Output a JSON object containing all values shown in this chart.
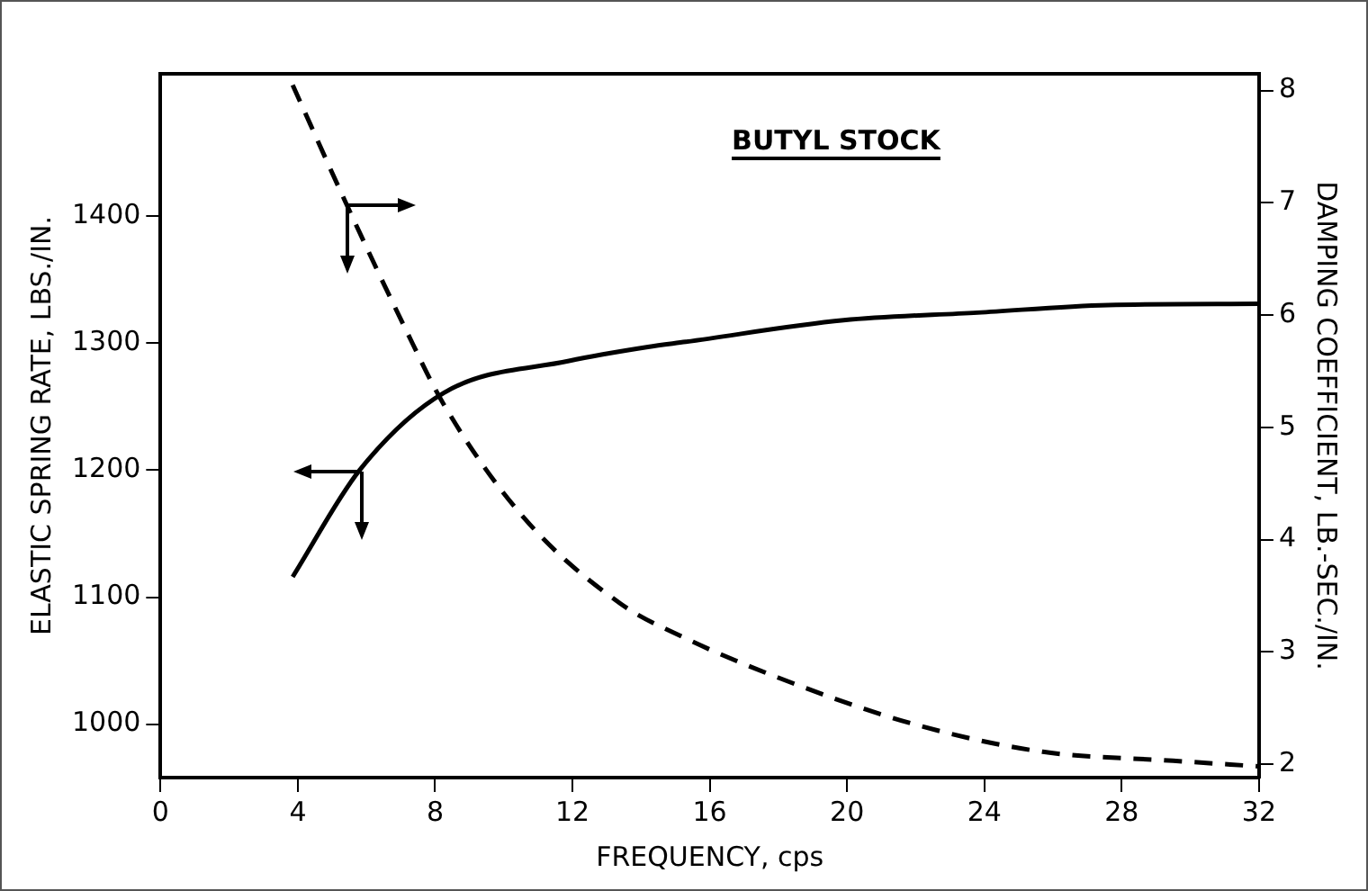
{
  "chart_data": {
    "type": "line",
    "xlabel": "FREQUENCY, cps",
    "ylabel": "ELASTIC SPRING RATE, LBS./IN.",
    "y2label": "DAMPING COEFFICIENT, LB.-SEC./IN.",
    "annotations": [
      "BUTYL STOCK"
    ],
    "xlim": [
      0,
      32
    ],
    "xticks": [
      0,
      4,
      8,
      12,
      16,
      20,
      24,
      28,
      32
    ],
    "ylim": [
      958,
      1512
    ],
    "yticks": [
      1000,
      1100,
      1200,
      1300,
      1400
    ],
    "y2lim": [
      1.88,
      8.15
    ],
    "y2ticks": [
      2,
      3,
      4,
      5,
      6,
      7,
      8
    ],
    "grid": false,
    "legend": false,
    "marker": "none",
    "series": [
      {
        "color": "#000000",
        "line_style": "solid",
        "axis": "y",
        "x": [
          3.85,
          5.8,
          8.26,
          11.9,
          14.2,
          15.3,
          19.9,
          23.8,
          27.6,
          32
        ],
        "values": [
          1116,
          1200,
          1261,
          1286,
          1297,
          1301,
          1318,
          1324,
          1330,
          1331
        ]
      },
      {
        "color": "#000000",
        "line_style": "dashed",
        "axis": "y2",
        "x": [
          3.85,
          5.4,
          7.1,
          8.26,
          10.6,
          13.4,
          15.3,
          18.0,
          21.9,
          25.7,
          29.5,
          32
        ],
        "values": [
          8.05,
          7.0,
          5.9,
          5.2,
          4.19,
          3.43,
          3.12,
          2.77,
          2.36,
          2.11,
          2.03,
          1.98
        ]
      }
    ]
  }
}
